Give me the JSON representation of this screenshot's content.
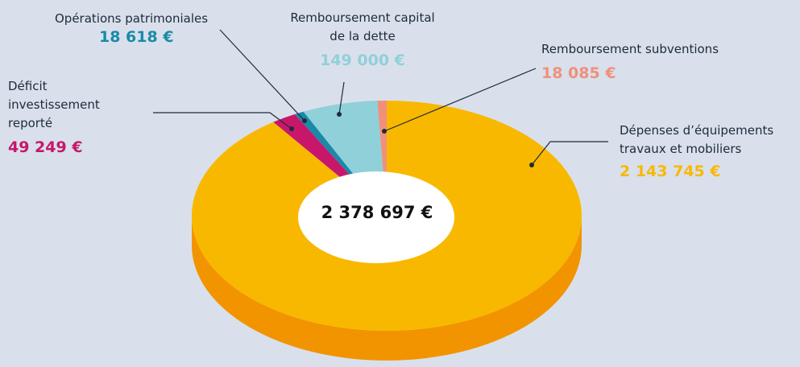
{
  "chart_data": {
    "type": "pie",
    "donut": true,
    "three_d": true,
    "categories": [
      "Dépenses d’équipements\ntravaux et mobiliers",
      "Déficit\ninvestissement\nreporté",
      "Opérations patrimoniales",
      "Remboursement capital\nde la dette",
      "Remboursement subventions"
    ],
    "values": [
      2143745,
      49249,
      18618,
      149000,
      18085
    ],
    "value_labels": [
      "2 143 745 €",
      "49 249 €",
      "18 618 €",
      "149 000 €",
      "18 085 €"
    ],
    "colors": [
      "#f9b800",
      "#c8176a",
      "#1a8aa6",
      "#8fd0d9",
      "#f0907a"
    ],
    "side_colors": [
      "#f29400",
      "#9e1052",
      "#136b82",
      "#6fb3bd",
      "#d2735e"
    ],
    "center_label": "2 378 697 €"
  }
}
